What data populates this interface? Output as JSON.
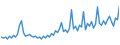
{
  "chart_data": {
    "type": "line",
    "color": "#3d8fd6",
    "tick_labels": false,
    "grid": false,
    "ylim": [
      0,
      45
    ],
    "values": [
      7,
      6,
      7,
      5,
      8,
      6,
      9,
      7,
      10,
      20,
      25,
      12,
      8,
      9,
      10,
      8,
      7,
      8,
      6,
      7,
      5,
      8,
      6,
      9,
      7,
      11,
      9,
      14,
      12,
      16,
      23,
      13,
      15,
      12,
      17,
      37,
      16,
      19,
      14,
      20,
      18,
      35,
      15,
      22,
      19,
      24,
      17,
      21,
      40,
      22,
      20,
      25,
      21,
      26,
      30,
      24,
      19,
      28,
      26,
      42
    ]
  }
}
